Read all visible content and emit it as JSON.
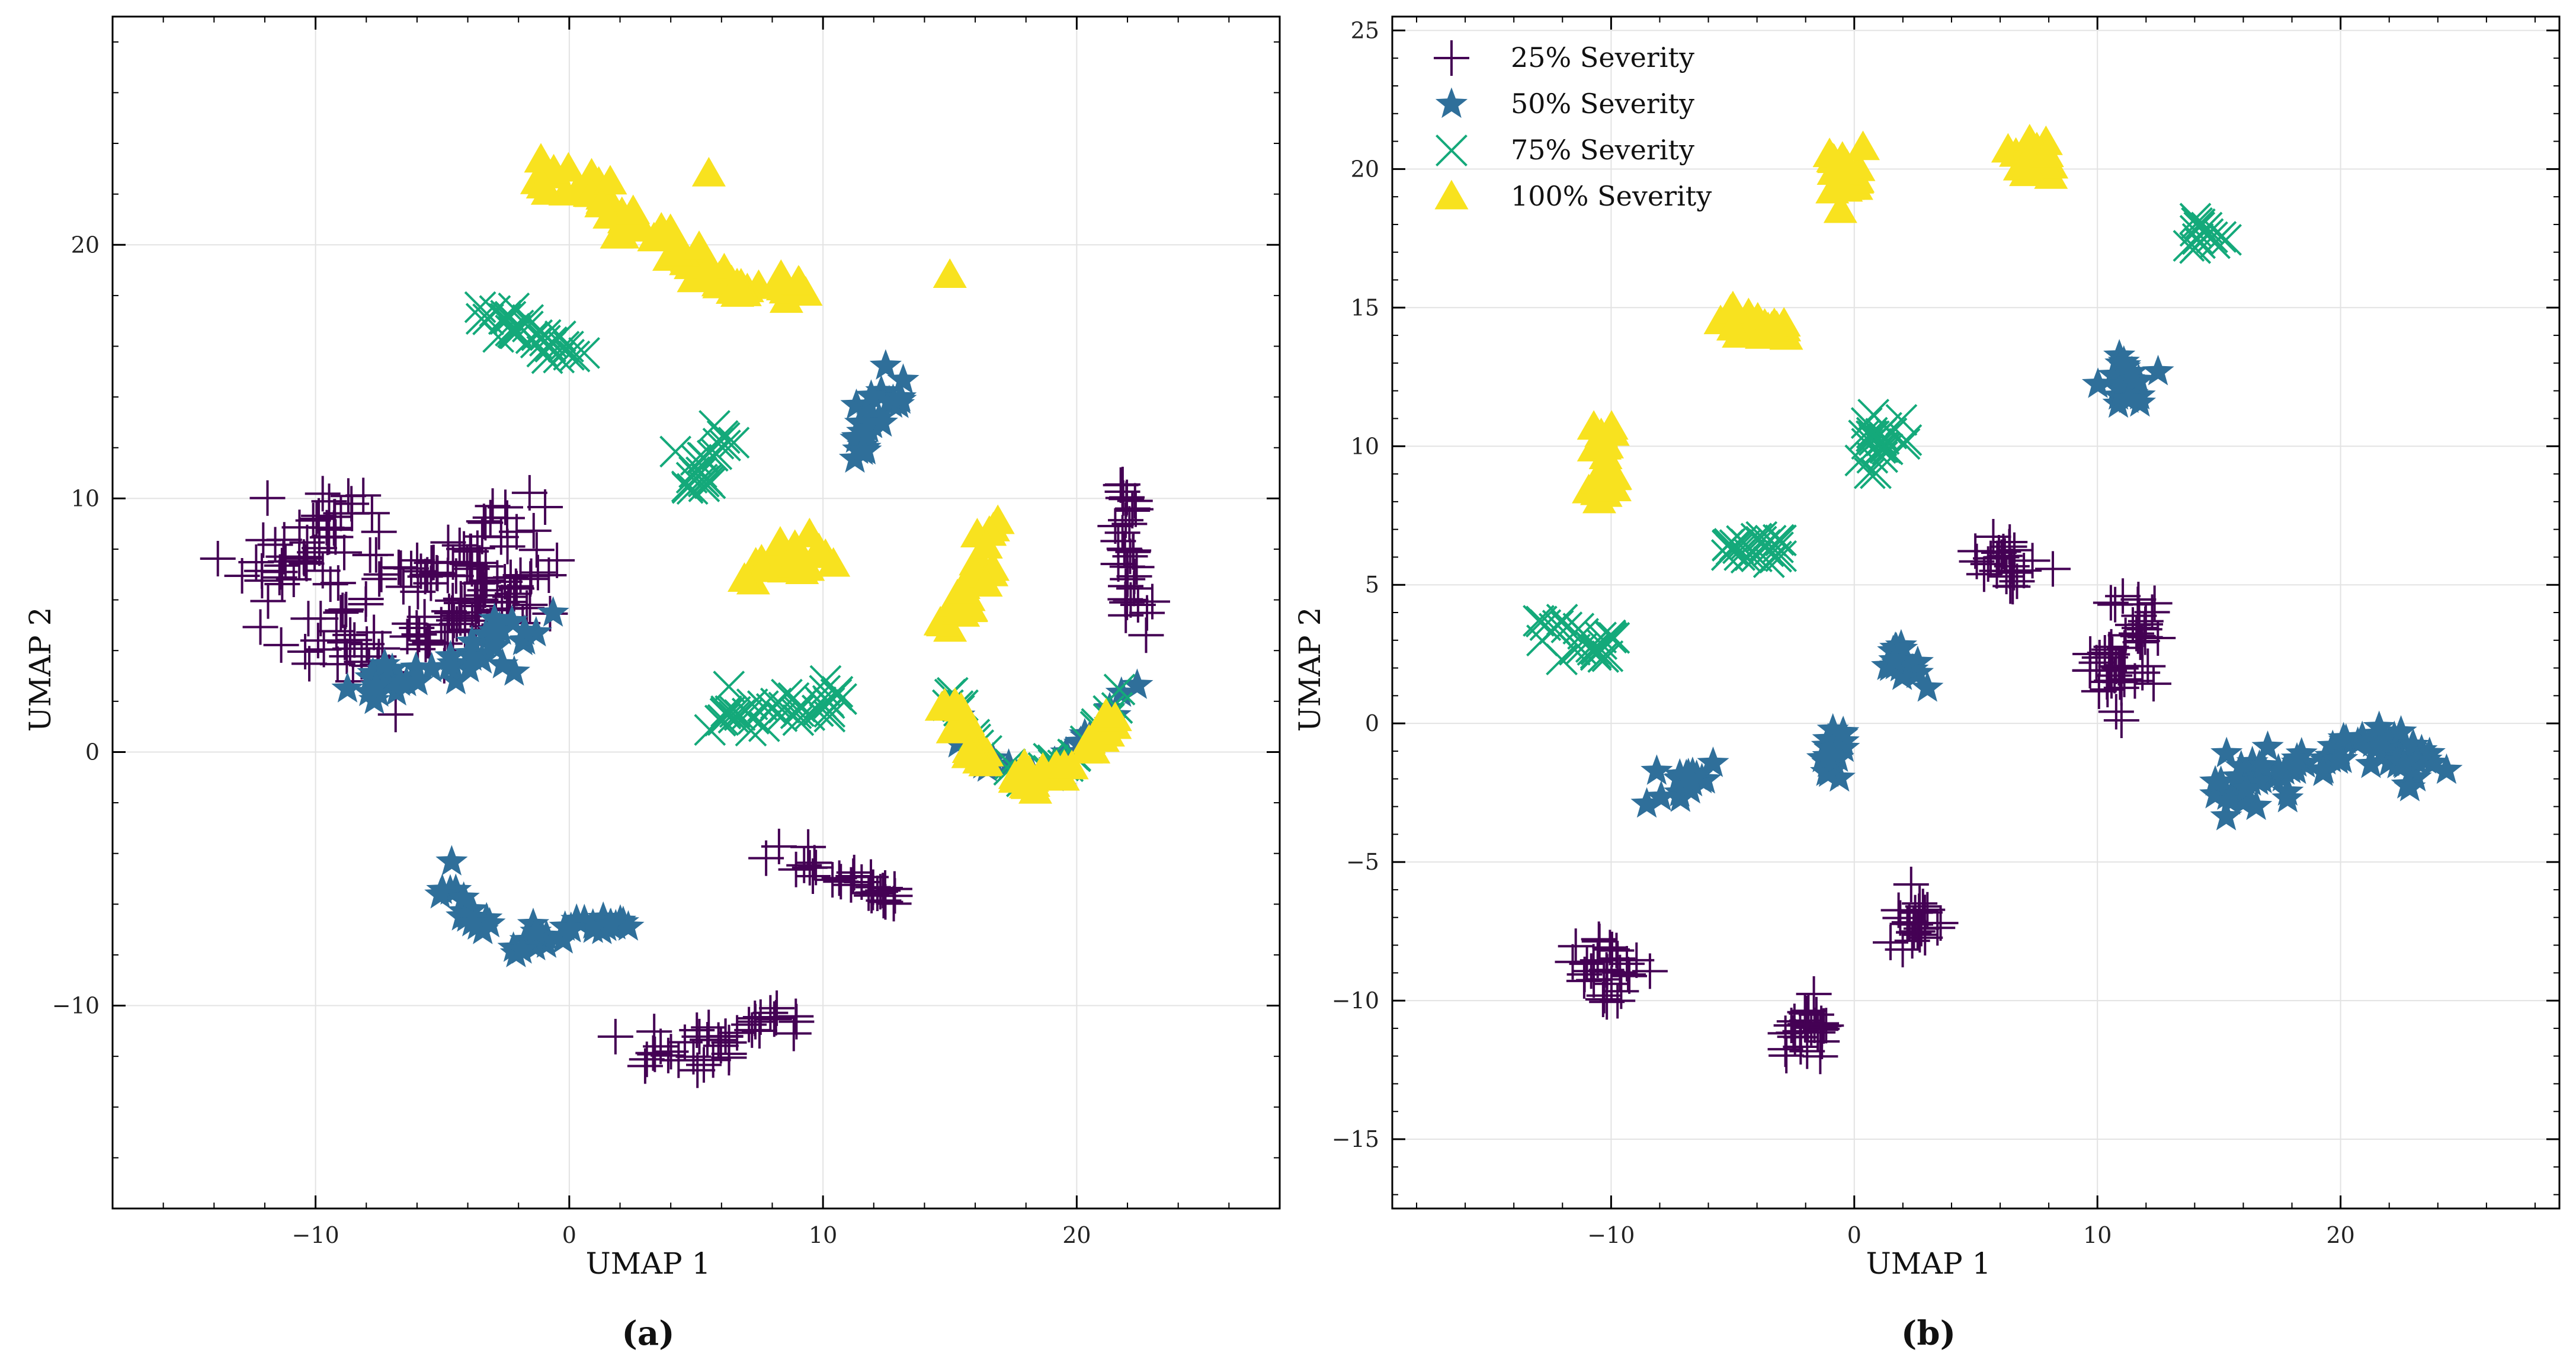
{
  "chart_data": [
    {
      "panel_label": "(a)",
      "type": "scatter",
      "xlabel": "UMAP 1",
      "ylabel": "UMAP 2",
      "xlim": [
        -18,
        28
      ],
      "ylim": [
        -18,
        29
      ],
      "xticks": [
        -10,
        0,
        10,
        20
      ],
      "yticks": [
        -10,
        0,
        10,
        20
      ],
      "xtick_labels": [
        "−10",
        "0",
        "10",
        "20"
      ],
      "ytick_labels": [
        "−10",
        "0",
        "10",
        "20"
      ],
      "grid": true,
      "series": [
        {
          "key": "s25",
          "marker": "plus",
          "color": "#440154",
          "clusters": [
            {
              "path": [
                [
                  -12,
                  7
                ],
                [
                  -10,
                  8.5
                ],
                [
                  -8,
                  10
                ]
              ],
              "spread": 0.7,
              "n": 45
            },
            {
              "path": [
                [
                  -10,
                  7.5
                ],
                [
                  -6,
                  6.5
                ],
                [
                  -3,
                  8.5
                ],
                [
                  -1.5,
                  9
                ]
              ],
              "spread": 0.7,
              "n": 50
            },
            {
              "path": [
                [
                  -12,
                  5
                ],
                [
                  -9,
                  4.5
                ],
                [
                  -7,
                  4
                ],
                [
                  -4,
                  5
                ],
                [
                  -1.5,
                  7
                ]
              ],
              "spread": 0.7,
              "n": 60
            },
            {
              "path": [
                [
                  -6,
                  5
                ],
                [
                  -4,
                  5.5
                ],
                [
                  -2,
                  6.5
                ]
              ],
              "spread": 0.6,
              "n": 35
            },
            {
              "path": [
                [
                  21.8,
                  10.5
                ],
                [
                  22.2,
                  7.5
                ],
                [
                  22.5,
                  5
                ]
              ],
              "spread": 0.25,
              "n": 35
            },
            {
              "path": [
                [
                  8,
                  -4
                ],
                [
                  11,
                  -5
                ],
                [
                  13,
                  -5.8
                ]
              ],
              "spread": 0.3,
              "n": 30
            },
            {
              "path": [
                [
                  2,
                  -12
                ],
                [
                  5,
                  -11.8
                ],
                [
                  7,
                  -11
                ],
                [
                  8.5,
                  -10.5
                ]
              ],
              "spread": 0.4,
              "n": 40
            }
          ]
        },
        {
          "key": "s50",
          "marker": "star",
          "color": "#2f6f9a",
          "clusters": [
            {
              "path": [
                [
                  -8.5,
                  2.5
                ],
                [
                  -6,
                  3
                ],
                [
                  -3.5,
                  4
                ],
                [
                  -1,
                  5
                ]
              ],
              "spread": 0.45,
              "n": 45
            },
            {
              "path": [
                [
                  11,
                  11.5
                ],
                [
                  12,
                  13
                ],
                [
                  13,
                  14.5
                ]
              ],
              "spread": 0.35,
              "n": 30
            },
            {
              "path": [
                [
                  -5,
                  -4
                ],
                [
                  -4.5,
                  -6
                ],
                [
                  -2.5,
                  -7.5
                ],
                [
                  0,
                  -7
                ],
                [
                  2.5,
                  -6.7
                ]
              ],
              "spread": 0.3,
              "n": 45
            },
            {
              "path": [
                [
                  15,
                  1.5
                ],
                [
                  16.5,
                  -0.5
                ],
                [
                  18.5,
                  -1
                ],
                [
                  20.5,
                  0.5
                ],
                [
                  22.3,
                  3
                ]
              ],
              "spread": 0.2,
              "n": 30
            }
          ]
        },
        {
          "key": "s75",
          "marker": "x",
          "color": "#14a97a",
          "clusters": [
            {
              "path": [
                [
                  -3.5,
                  17.5
                ],
                [
                  -1.5,
                  16.5
                ],
                [
                  0.5,
                  15.3
                ]
              ],
              "spread": 0.35,
              "n": 35
            },
            {
              "path": [
                [
                  5,
                  10.5
                ],
                [
                  5.5,
                  11.5
                ],
                [
                  6.2,
                  12.7
                ]
              ],
              "spread": 0.3,
              "n": 25
            },
            {
              "path": [
                [
                  6,
                  1.5
                ],
                [
                  8,
                  1.6
                ],
                [
                  9.5,
                  2
                ],
                [
                  10.5,
                  1.7
                ]
              ],
              "spread": 0.35,
              "n": 40
            },
            {
              "path": [
                [
                  15,
                  2.5
                ],
                [
                  16,
                  0
                ],
                [
                  18,
                  -1
                ],
                [
                  20,
                  -0.2
                ],
                [
                  22,
                  2.8
                ]
              ],
              "spread": 0.2,
              "n": 35
            }
          ]
        },
        {
          "key": "s100",
          "marker": "triangle",
          "color": "#f8e21f",
          "clusters": [
            {
              "path": [
                [
                  -1.5,
                  23
                ],
                [
                  1,
                  22.2
                ],
                [
                  3,
                  20.5
                ],
                [
                  5,
                  19
                ],
                [
                  7,
                  18.2
                ],
                [
                  9.5,
                  18.2
                ]
              ],
              "spread": 0.3,
              "n": 70
            },
            {
              "path": [
                [
                  7,
                  7
                ],
                [
                  8.5,
                  7.5
                ],
                [
                  10,
                  8
                ]
              ],
              "spread": 0.35,
              "n": 30
            },
            {
              "path": [
                [
                  15,
                  5
                ],
                [
                  16,
                  7
                ],
                [
                  16.8,
                  9
                ]
              ],
              "spread": 0.3,
              "n": 30
            },
            {
              "path": [
                [
                  15,
                  2.2
                ],
                [
                  16,
                  0
                ],
                [
                  18,
                  -1.2
                ],
                [
                  20,
                  -0.6
                ],
                [
                  22,
                  1.8
                ]
              ],
              "spread": 0.25,
              "n": 50
            }
          ],
          "points": [
            [
              5.5,
              22.8
            ],
            [
              15,
              18.8
            ]
          ]
        }
      ]
    },
    {
      "panel_label": "(b)",
      "type": "scatter",
      "xlabel": "UMAP 1",
      "ylabel": "UMAP 2",
      "xlim": [
        -19,
        29
      ],
      "ylim": [
        -17.5,
        25.5
      ],
      "xticks": [
        -10,
        0,
        10,
        20
      ],
      "yticks": [
        -15,
        -10,
        -5,
        0,
        5,
        10,
        15,
        20,
        25
      ],
      "xtick_labels": [
        "−10",
        "0",
        "10",
        "20"
      ],
      "ytick_labels": [
        "−15",
        "−10",
        "−5",
        "0",
        "5",
        "10",
        "15",
        "20",
        "25"
      ],
      "grid": true,
      "legend": {
        "placement": "top-left",
        "entries": [
          {
            "label": "25% Severity",
            "series": "s25"
          },
          {
            "label": "50% Severity",
            "series": "s50"
          },
          {
            "label": "75% Severity",
            "series": "s75"
          },
          {
            "label": "100% Severity",
            "series": "s100"
          }
        ]
      },
      "series": [
        {
          "key": "s25",
          "marker": "plus",
          "color": "#440154",
          "clusters": [
            {
              "path": [
                [
                  6,
                  6
                ],
                [
                  6.5,
                  5.8
                ]
              ],
              "spread": 0.5,
              "n": 25
            },
            {
              "path": [
                [
                  10,
                  1
                ],
                [
                  11,
                  2.5
                ],
                [
                  12,
                  4
                ]
              ],
              "spread": 0.55,
              "n": 50
            },
            {
              "path": [
                [
                  2.5,
                  -7
                ]
              ],
              "spread": 0.5,
              "n": 25
            },
            {
              "path": [
                [
                  -10,
                  -8.8
                ]
              ],
              "spread": 0.55,
              "n": 30
            },
            {
              "path": [
                [
                  -2,
                  -11
                ]
              ],
              "spread": 0.5,
              "n": 30
            }
          ]
        },
        {
          "key": "s50",
          "marker": "star",
          "color": "#2f6f9a",
          "clusters": [
            {
              "path": [
                [
                  11,
                  12.5
                ],
                [
                  11.5,
                  12
                ]
              ],
              "spread": 0.5,
              "n": 25
            },
            {
              "path": [
                [
                  1.5,
                  2.5
                ],
                [
                  2.5,
                  1.6
                ]
              ],
              "spread": 0.3,
              "n": 20
            },
            {
              "path": [
                [
                  -8,
                  -2.5
                ],
                [
                  -6,
                  -1.8
                ]
              ],
              "spread": 0.3,
              "n": 20
            },
            {
              "path": [
                [
                  -1,
                  -0.5
                ],
                [
                  -1,
                  -1.8
                ]
              ],
              "spread": 0.3,
              "n": 18
            },
            {
              "path": [
                [
                  15,
                  -2.5
                ],
                [
                  18,
                  -1.5
                ],
                [
                  21,
                  -0.8
                ],
                [
                  23.5,
                  -1.7
                ]
              ],
              "spread": 0.45,
              "n": 80
            }
          ]
        },
        {
          "key": "s75",
          "marker": "x",
          "color": "#14a97a",
          "clusters": [
            {
              "path": [
                [
                  14.5,
                  17.5
                ]
              ],
              "spread": 0.4,
              "n": 15
            },
            {
              "path": [
                [
                  0.5,
                  10.5
                ],
                [
                  1.5,
                  10.2
                ]
              ],
              "spread": 0.5,
              "n": 25
            },
            {
              "path": [
                [
                  -5.5,
                  6.2
                ],
                [
                  -3,
                  6.2
                ]
              ],
              "spread": 0.25,
              "n": 25
            },
            {
              "path": [
                [
                  -13,
                  3.5
                ],
                [
                  -11,
                  3.2
                ],
                [
                  -10,
                  2.5
                ]
              ],
              "spread": 0.35,
              "n": 25
            }
          ]
        },
        {
          "key": "s100",
          "marker": "triangle",
          "color": "#f8e21f",
          "clusters": [
            {
              "path": [
                [
                  -0.5,
                  20
                ],
                [
                  -0.5,
                  19.2
                ]
              ],
              "spread": 0.45,
              "n": 25
            },
            {
              "path": [
                [
                  6.5,
                  20.6
                ],
                [
                  8,
                  20.3
                ]
              ],
              "spread": 0.35,
              "n": 25
            },
            {
              "path": [
                [
                  -5,
                  14.5
                ],
                [
                  -3,
                  14.2
                ]
              ],
              "spread": 0.25,
              "n": 22
            },
            {
              "path": [
                [
                  -10.5,
                  11
                ],
                [
                  -10.3,
                  9
                ],
                [
                  -10,
                  8.3
                ]
              ],
              "spread": 0.3,
              "n": 25
            }
          ]
        }
      ]
    }
  ]
}
